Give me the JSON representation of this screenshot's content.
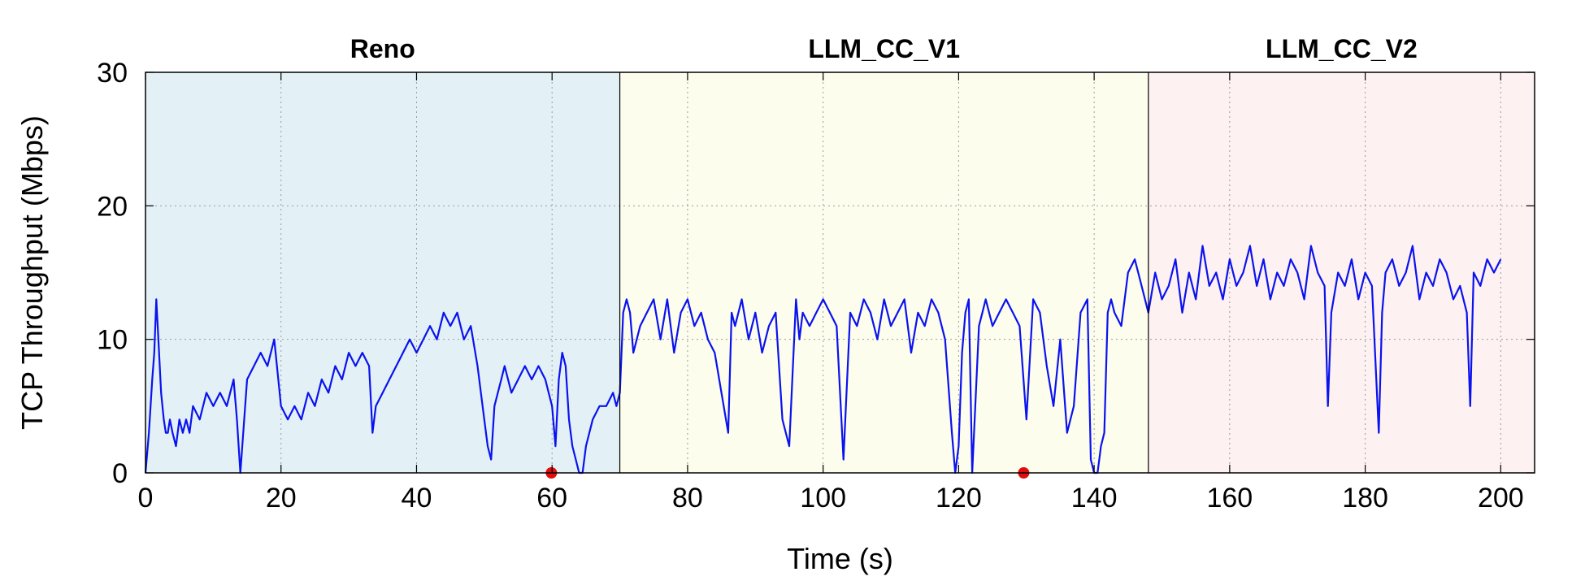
{
  "chart_data": {
    "type": "line",
    "xlabel": "Time (s)",
    "ylabel": "TCP Throughput (Mbps)",
    "xlim": [
      0,
      205
    ],
    "ylim": [
      0,
      30
    ],
    "x_ticks": [
      0,
      20,
      40,
      60,
      80,
      100,
      120,
      140,
      160,
      180,
      200
    ],
    "y_ticks": [
      0,
      10,
      20,
      30
    ],
    "grid": true,
    "regions": [
      {
        "label": "Reno",
        "x_start": 0,
        "x_end": 70,
        "color": "#e3f1f6"
      },
      {
        "label": "LLM_CC_V1",
        "x_start": 70,
        "x_end": 148,
        "color": "#fdfdee"
      },
      {
        "label": "LLM_CC_V2",
        "x_start": 148,
        "x_end": 205,
        "color": "#fdf1f1"
      }
    ],
    "series": [
      {
        "color": "#0a12ef",
        "x": [
          0,
          0.5,
          1,
          1.3,
          1.6,
          2,
          2.3,
          2.7,
          3,
          3.3,
          3.6,
          4,
          4.5,
          5,
          5.5,
          6,
          6.5,
          7,
          8,
          9,
          10,
          11,
          12,
          13,
          13.5,
          14,
          15,
          16,
          17,
          18,
          18.5,
          19,
          20,
          21,
          22,
          23,
          24,
          25,
          26,
          27,
          28,
          29,
          30,
          31,
          32,
          33,
          33.5,
          34,
          35,
          36,
          37,
          38,
          39,
          40,
          41,
          42,
          43,
          44,
          45,
          46,
          47,
          48,
          49,
          50,
          50.5,
          51,
          51.5,
          52,
          52.5,
          53,
          54,
          55,
          56,
          57,
          58,
          59,
          59.5,
          60,
          60.5,
          61,
          61.5,
          62,
          62.5,
          63,
          63.5,
          64,
          64.5,
          65,
          66,
          67,
          68,
          69,
          69.5,
          70,
          70.5,
          71,
          71.5,
          72,
          73,
          74,
          75,
          76,
          77,
          78,
          79,
          80,
          81,
          82,
          83,
          84,
          85,
          86,
          86.5,
          87,
          88,
          89,
          90,
          91,
          92,
          93,
          94,
          95,
          96,
          96.5,
          97,
          98,
          99,
          100,
          101,
          102,
          103,
          104,
          105,
          106,
          107,
          108,
          109,
          110,
          111,
          112,
          113,
          114,
          115,
          116,
          117,
          118,
          119,
          119.5,
          120,
          120.5,
          121,
          121.5,
          122,
          123,
          123.5,
          124,
          125,
          126,
          127,
          128,
          129,
          130,
          131,
          132,
          133,
          134,
          135,
          136,
          137,
          138,
          139,
          139.5,
          140,
          140.5,
          141,
          141.5,
          142,
          142.5,
          143,
          144,
          145,
          146,
          147,
          148,
          149,
          150,
          151,
          152,
          153,
          154,
          155,
          156,
          157,
          158,
          159,
          160,
          161,
          162,
          163,
          164,
          165,
          166,
          167,
          168,
          169,
          170,
          171,
          172,
          173,
          174,
          174.5,
          175,
          176,
          177,
          178,
          179,
          180,
          181,
          182,
          182.5,
          183,
          184,
          185,
          186,
          187,
          188,
          189,
          190,
          191,
          192,
          193,
          194,
          195,
          195.5,
          196,
          197,
          198,
          199,
          200
        ],
        "y": [
          0,
          3,
          7,
          9,
          13,
          9,
          6,
          4,
          3,
          3,
          4,
          3,
          2,
          4,
          3,
          4,
          3,
          5,
          4,
          6,
          5,
          6,
          5,
          7,
          4,
          0,
          7,
          8,
          9,
          8,
          9,
          10,
          5,
          4,
          5,
          4,
          6,
          5,
          7,
          6,
          8,
          7,
          9,
          8,
          9,
          8,
          3,
          5,
          6,
          7,
          8,
          9,
          10,
          9,
          10,
          11,
          10,
          12,
          11,
          12,
          10,
          11,
          8,
          4,
          2,
          1,
          5,
          6,
          7,
          8,
          6,
          7,
          8,
          7,
          8,
          7,
          6,
          5,
          2,
          7,
          9,
          8,
          4,
          2,
          1,
          0,
          0,
          2,
          4,
          5,
          5,
          6,
          5,
          6,
          12,
          13,
          12,
          9,
          11,
          12,
          13,
          10,
          13,
          9,
          12,
          13,
          11,
          12,
          10,
          9,
          6,
          3,
          12,
          11,
          13,
          10,
          12,
          9,
          11,
          12,
          4,
          2,
          13,
          10,
          12,
          11,
          12,
          13,
          12,
          11,
          1,
          12,
          11,
          13,
          12,
          10,
          13,
          11,
          12,
          13,
          9,
          12,
          11,
          13,
          12,
          10,
          3,
          0,
          2,
          9,
          12,
          13,
          0,
          11,
          12,
          13,
          11,
          12,
          13,
          12,
          11,
          4,
          13,
          12,
          8,
          5,
          10,
          3,
          5,
          12,
          13,
          1,
          0,
          0,
          2,
          3,
          12,
          13,
          12,
          11,
          15,
          16,
          14,
          12,
          15,
          13,
          14,
          16,
          12,
          15,
          13,
          17,
          14,
          15,
          13,
          16,
          14,
          15,
          17,
          14,
          16,
          13,
          15,
          14,
          16,
          15,
          13,
          17,
          15,
          14,
          5,
          12,
          15,
          14,
          16,
          13,
          15,
          14,
          3,
          12,
          15,
          16,
          14,
          15,
          17,
          13,
          15,
          14,
          16,
          15,
          13,
          14,
          12,
          5,
          15,
          14,
          16,
          15,
          16
        ]
      }
    ],
    "markers": [
      {
        "x": 59.9,
        "y": 0,
        "color": "#e00d0d"
      },
      {
        "x": 129.6,
        "y": 0,
        "color": "#e00d0d"
      }
    ]
  }
}
